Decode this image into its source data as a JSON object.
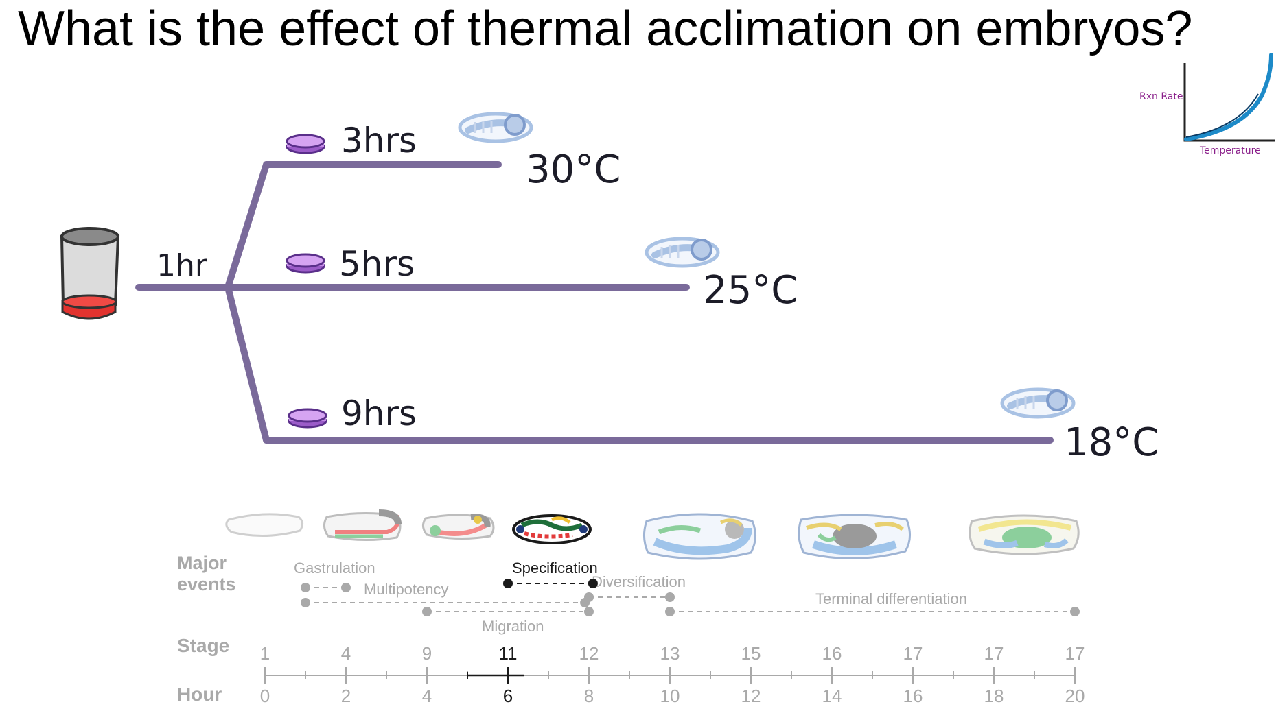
{
  "title": "What is the effect of thermal acclimation on embryos?",
  "colors": {
    "branch": "#7a6a9a",
    "dish_fill": "#c58be8",
    "dish_edge": "#6a3aa0",
    "tube_liquid": "#e2332f",
    "tube_glass": "#dcdcdc",
    "graph_curve": "#1d8ac8",
    "graph_label": "#8a1f8a",
    "timeline_grey": "#a9a9a9",
    "timeline_active": "#1a1a1a",
    "embryo_blue": "#a9c2e4"
  },
  "diagram": {
    "initial_incubation": "1hr",
    "branches": [
      {
        "duration": "3hrs",
        "temperature": "30°C"
      },
      {
        "duration": "5hrs",
        "temperature": "25°C"
      },
      {
        "duration": "9hrs",
        "temperature": "18°C"
      }
    ]
  },
  "inset_graph": {
    "ylabel": "Rxn Rate",
    "xlabel": "Temperature"
  },
  "timeline": {
    "major_events_label": "Major events",
    "stage_label": "Stage",
    "hour_label": "Hour",
    "events": [
      {
        "name": "Gastrulation",
        "active": false
      },
      {
        "name": "Multipotency",
        "active": false
      },
      {
        "name": "Specification",
        "active": true
      },
      {
        "name": "Diversification",
        "active": false
      },
      {
        "name": "Migration",
        "active": false
      },
      {
        "name": "Terminal differentiation",
        "active": false
      }
    ],
    "stages": [
      "1",
      "4",
      "9",
      "11",
      "12",
      "13",
      "15",
      "16",
      "17",
      "17",
      "17"
    ],
    "hours": [
      "0",
      "2",
      "4",
      "6",
      "8",
      "10",
      "12",
      "14",
      "16",
      "18",
      "20"
    ],
    "highlight_hour": "6",
    "highlight_stage": "11"
  }
}
